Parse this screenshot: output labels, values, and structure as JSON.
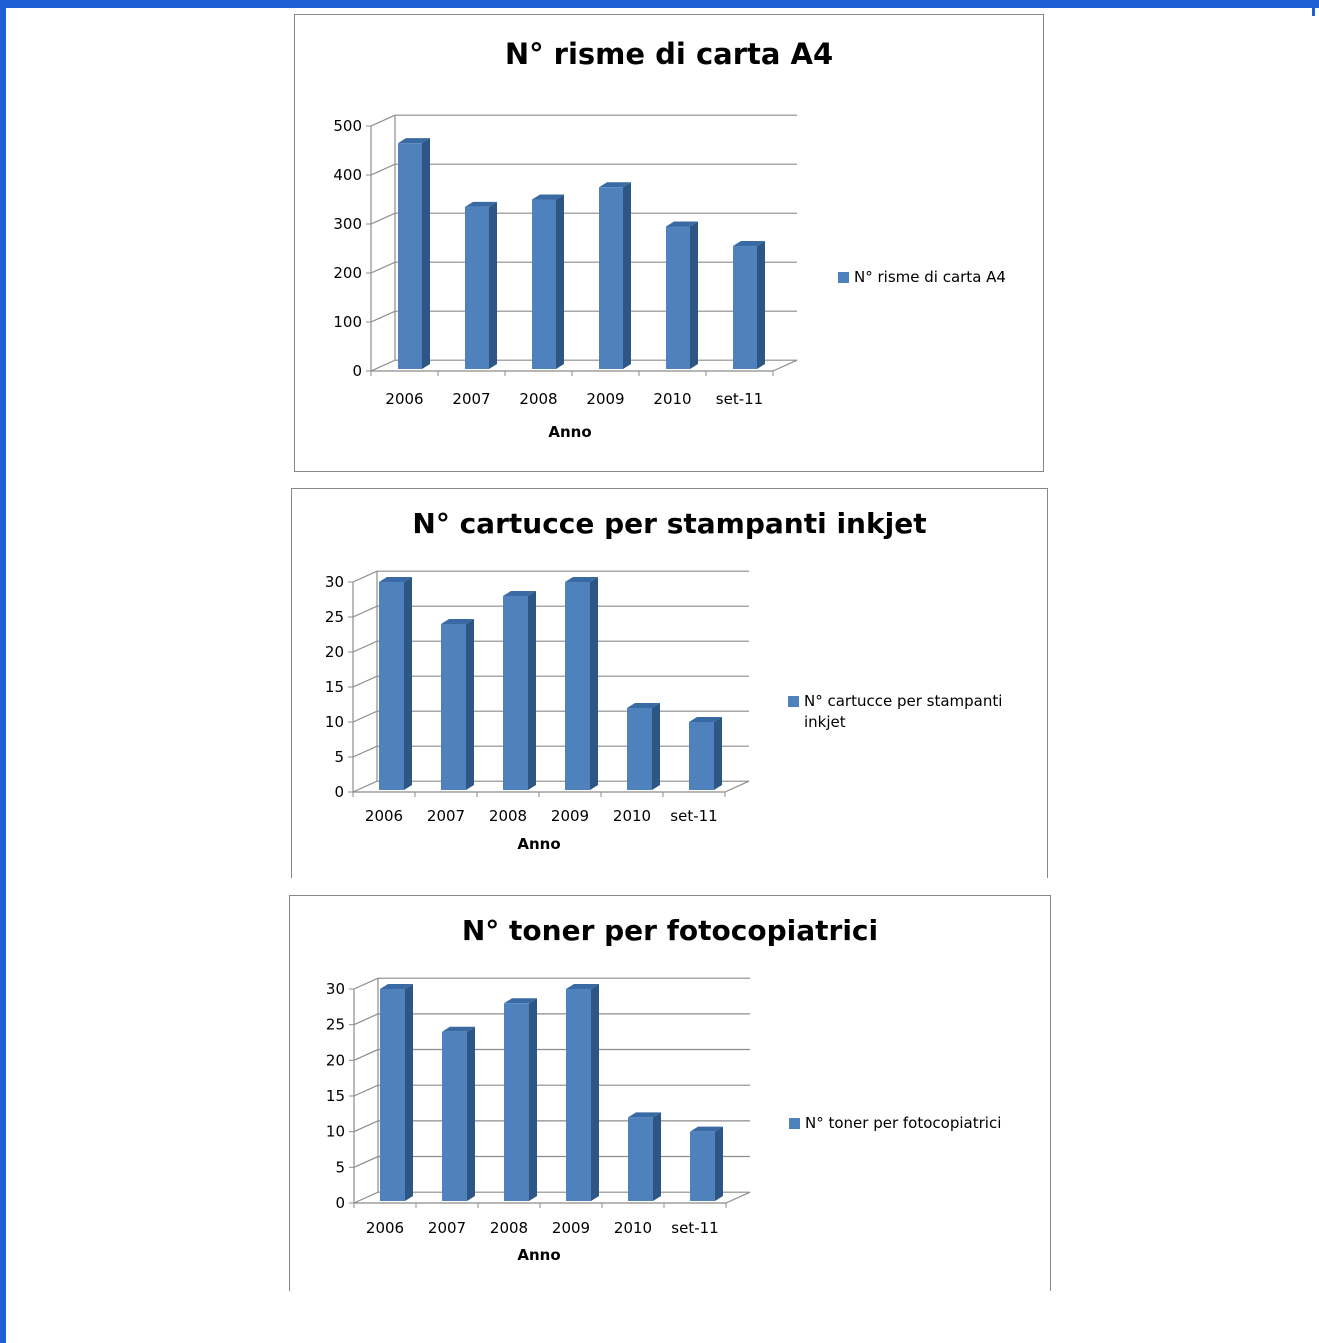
{
  "colors": {
    "frame": "#1f5fd6",
    "bar_front": "#4f81bd",
    "bar_side": "#2e5684",
    "bar_top": "#3a6aa3",
    "grid": "#8c8c8c"
  },
  "chart_data": [
    {
      "type": "bar",
      "title": "N° risme di carta A4",
      "xlabel": "Anno",
      "ylabel": "",
      "categories": [
        "2006",
        "2007",
        "2008",
        "2009",
        "2010",
        "set-11"
      ],
      "series": [
        {
          "name": "N° risme di carta A4",
          "values": [
            465,
            335,
            350,
            375,
            295,
            255
          ]
        }
      ],
      "ylim": [
        0,
        500
      ],
      "yticks": [
        "0",
        "100",
        "200",
        "300",
        "400",
        "500"
      ],
      "grid": true,
      "legend_position": "right",
      "style": "3d-column"
    },
    {
      "type": "bar",
      "title": "N° cartucce per stampanti inkjet",
      "xlabel": "Anno",
      "ylabel": "",
      "categories": [
        "2006",
        "2007",
        "2008",
        "2009",
        "2010",
        "set-11"
      ],
      "series": [
        {
          "name": "N° cartucce per stampanti inkjet",
          "values": [
            30,
            24,
            28,
            30,
            12,
            10
          ]
        }
      ],
      "ylim": [
        0,
        30
      ],
      "yticks": [
        "0",
        "5",
        "10",
        "15",
        "20",
        "25",
        "30"
      ],
      "grid": true,
      "legend_position": "right",
      "style": "3d-column"
    },
    {
      "type": "bar",
      "title": "N° toner per fotocopiatrici",
      "xlabel": "Anno",
      "ylabel": "",
      "categories": [
        "2006",
        "2007",
        "2008",
        "2009",
        "2010",
        "set-11"
      ],
      "series": [
        {
          "name": "N° toner per fotocopiatrici",
          "values": [
            30,
            24,
            28,
            30,
            12,
            10
          ]
        }
      ],
      "ylim": [
        0,
        30
      ],
      "yticks": [
        "0",
        "5",
        "10",
        "15",
        "20",
        "25",
        "30"
      ],
      "grid": true,
      "legend_position": "right",
      "style": "3d-column"
    }
  ]
}
